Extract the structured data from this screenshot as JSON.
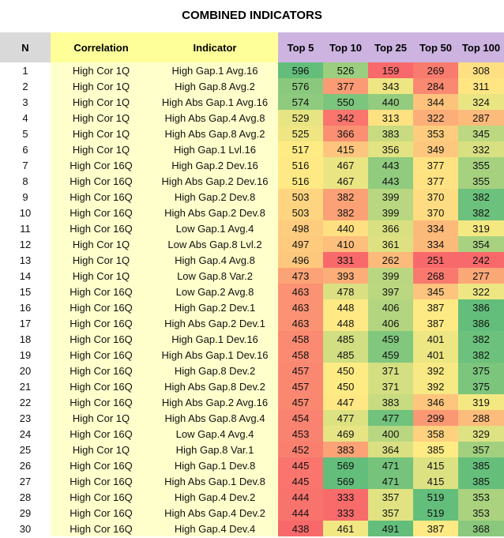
{
  "title": "COMBINED INDICATORS",
  "chart_data": {
    "type": "table",
    "title": "COMBINED INDICATORS",
    "columns": [
      "N",
      "Correlation",
      "Indicator",
      "Top 5",
      "Top 10",
      "Top 25",
      "Top 50",
      "Top 100"
    ],
    "color_scale": {
      "low": "#f8696b",
      "mid": "#ffeb84",
      "high": "#63be7b"
    },
    "rows": [
      [
        1,
        "High Cor 1Q",
        "High Gap.1 Avg.16",
        596,
        526,
        159,
        269,
        308
      ],
      [
        2,
        "High Cor 1Q",
        "High Gap.8 Avg.2",
        576,
        377,
        343,
        284,
        311
      ],
      [
        3,
        "High Cor 1Q",
        "High Abs Gap.1 Avg.16",
        574,
        550,
        440,
        344,
        324
      ],
      [
        4,
        "High Cor 1Q",
        "High Abs Gap.4 Avg.8",
        529,
        342,
        313,
        322,
        287
      ],
      [
        5,
        "High Cor 1Q",
        "High Abs Gap.8 Avg.2",
        525,
        366,
        383,
        353,
        345
      ],
      [
        6,
        "High Cor 1Q",
        "High Gap.1 Lvl.16",
        517,
        415,
        356,
        349,
        332
      ],
      [
        7,
        "High Cor 16Q",
        "High Gap.2 Dev.16",
        516,
        467,
        443,
        377,
        355
      ],
      [
        8,
        "High Cor 16Q",
        "High Abs Gap.2 Dev.16",
        516,
        467,
        443,
        377,
        355
      ],
      [
        9,
        "High Cor 16Q",
        "High Gap.2 Dev.8",
        503,
        382,
        399,
        370,
        382
      ],
      [
        10,
        "High Cor 16Q",
        "High Abs Gap.2 Dev.8",
        503,
        382,
        399,
        370,
        382
      ],
      [
        11,
        "High Cor 16Q",
        "Low Gap.1 Avg.4",
        498,
        440,
        366,
        334,
        319
      ],
      [
        12,
        "High Cor 1Q",
        "Low Abs Gap.8 Lvl.2",
        497,
        410,
        361,
        334,
        354
      ],
      [
        13,
        "High Cor 1Q",
        "High Gap.4 Avg.8",
        496,
        331,
        262,
        251,
        242
      ],
      [
        14,
        "High Cor 1Q",
        "Low Gap.8 Var.2",
        473,
        393,
        399,
        268,
        277
      ],
      [
        15,
        "High Cor 16Q",
        "Low Gap.2 Avg.8",
        463,
        478,
        397,
        345,
        322
      ],
      [
        16,
        "High Cor 16Q",
        "High Gap.2 Dev.1",
        463,
        448,
        406,
        387,
        386
      ],
      [
        17,
        "High Cor 16Q",
        "High Abs Gap.2 Dev.1",
        463,
        448,
        406,
        387,
        386
      ],
      [
        18,
        "High Cor 16Q",
        "High Gap.1 Dev.16",
        458,
        485,
        459,
        401,
        382
      ],
      [
        19,
        "High Cor 16Q",
        "High Abs Gap.1 Dev.16",
        458,
        485,
        459,
        401,
        382
      ],
      [
        20,
        "High Cor 16Q",
        "High Gap.8 Dev.2",
        457,
        450,
        371,
        392,
        375
      ],
      [
        21,
        "High Cor 16Q",
        "High Abs Gap.8 Dev.2",
        457,
        450,
        371,
        392,
        375
      ],
      [
        22,
        "High Cor 16Q",
        "High Abs Gap.2 Avg.16",
        457,
        447,
        383,
        346,
        319
      ],
      [
        23,
        "High Cor 1Q",
        "High Abs Gap.8 Avg.4",
        454,
        477,
        477,
        299,
        288
      ],
      [
        24,
        "High Cor 16Q",
        "Low Gap.4 Avg.4",
        453,
        469,
        400,
        358,
        329
      ],
      [
        25,
        "High Cor 1Q",
        "High Gap.8 Var.1",
        452,
        383,
        364,
        385,
        357
      ],
      [
        26,
        "High Cor 16Q",
        "High Gap.1 Dev.8",
        445,
        569,
        471,
        415,
        385
      ],
      [
        27,
        "High Cor 16Q",
        "High Abs Gap.1 Dev.8",
        445,
        569,
        471,
        415,
        385
      ],
      [
        28,
        "High Cor 16Q",
        "High Gap.4 Dev.2",
        444,
        333,
        357,
        519,
        353
      ],
      [
        29,
        "High Cor 16Q",
        "High Abs Gap.4 Dev.2",
        444,
        333,
        357,
        519,
        353
      ],
      [
        30,
        "High Cor 16Q",
        "High Gap.4 Dev.4",
        438,
        461,
        491,
        387,
        368
      ]
    ]
  }
}
